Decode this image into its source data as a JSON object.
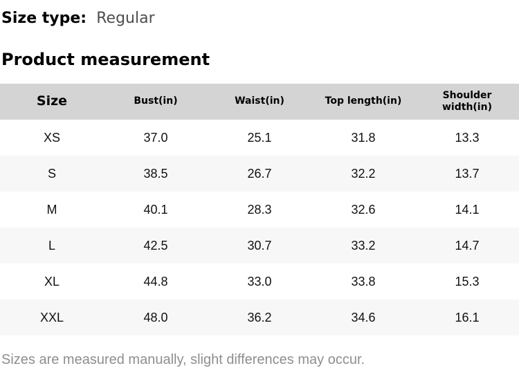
{
  "size_type": {
    "label": "Size type:",
    "value": "Regular"
  },
  "section_title": "Product measurement",
  "table": {
    "columns": [
      "Size",
      "Bust(in)",
      "Waist(in)",
      "Top length(in)",
      "Shoulder width(in)"
    ],
    "rows": [
      {
        "size": "XS",
        "bust": "37.0",
        "waist": "25.1",
        "top_length": "31.8",
        "shoulder_width": "13.3"
      },
      {
        "size": "S",
        "bust": "38.5",
        "waist": "26.7",
        "top_length": "32.2",
        "shoulder_width": "13.7"
      },
      {
        "size": "M",
        "bust": "40.1",
        "waist": "28.3",
        "top_length": "32.6",
        "shoulder_width": "14.1"
      },
      {
        "size": "L",
        "bust": "42.5",
        "waist": "30.7",
        "top_length": "33.2",
        "shoulder_width": "14.7"
      },
      {
        "size": "XL",
        "bust": "44.8",
        "waist": "33.0",
        "top_length": "33.8",
        "shoulder_width": "15.3"
      },
      {
        "size": "XXL",
        "bust": "48.0",
        "waist": "36.2",
        "top_length": "34.6",
        "shoulder_width": "16.1"
      }
    ]
  },
  "footnote": "Sizes are measured manually, slight differences may occur.",
  "colors": {
    "header_bg": "#d4d4d4",
    "stripe_bg": "#f7f7f7",
    "heading_text": "#000000",
    "size_type_value_text": "#4d4d4d",
    "cell_text": "#111111",
    "footnote_text": "#8e8e8e"
  }
}
